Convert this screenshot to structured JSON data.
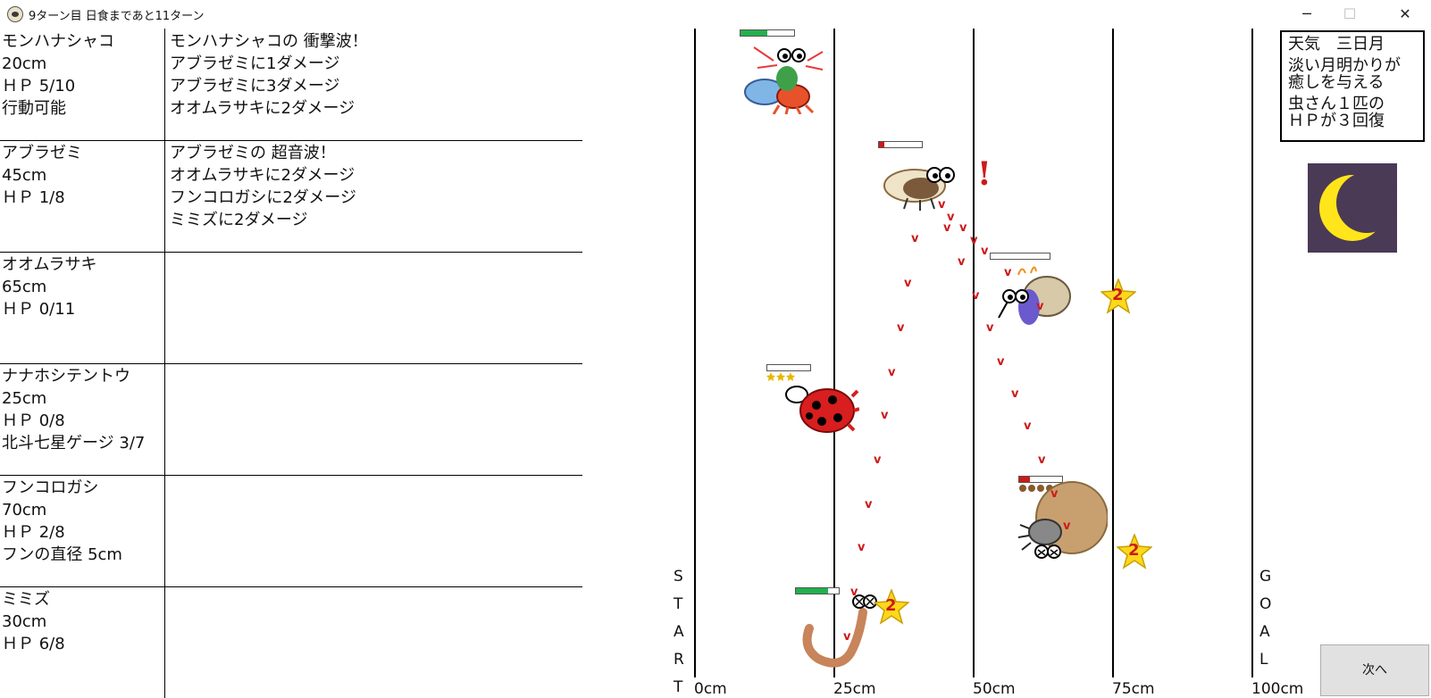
{
  "window": {
    "title": "9ターン目 日食まであと11ターン",
    "minimize": "─",
    "maximize": "☐",
    "close": "✕"
  },
  "creatures": [
    {
      "name": "モンハナシャコ",
      "dist": "20cm",
      "hp": "ＨＰ 5/10",
      "extra": "行動可能",
      "log": [
        "モンハナシャコの 衝撃波！",
        "アブラゼミに1ダメージ",
        "アブラゼミに3ダメージ",
        "オオムラサキに2ダメージ"
      ]
    },
    {
      "name": "アブラゼミ",
      "dist": "45cm",
      "hp": "ＨＰ 1/8",
      "extra": "",
      "log": [
        "アブラゼミの 超音波！",
        "オオムラサキに2ダメージ",
        "フンコロガシに2ダメージ",
        "ミミズに2ダメージ"
      ]
    },
    {
      "name": "オオムラサキ",
      "dist": "65cm",
      "hp": "ＨＰ 0/11",
      "extra": "",
      "log": []
    },
    {
      "name": "ナナホシテントウ",
      "dist": "25cm",
      "hp": "ＨＰ 0/8",
      "extra": "北斗七星ゲージ 3/7",
      "log": []
    },
    {
      "name": "フンコロガシ",
      "dist": "70cm",
      "hp": "ＨＰ 2/8",
      "extra": "フンの直径 5cm",
      "log": []
    },
    {
      "name": "ミミズ",
      "dist": "30cm",
      "hp": "ＨＰ 6/8",
      "extra": "",
      "log": []
    }
  ],
  "track": {
    "ticks": [
      "0cm",
      "25cm",
      "50cm",
      "75cm",
      "100cm"
    ],
    "start_letters": [
      "S",
      "T",
      "A",
      "R",
      "T"
    ],
    "goal_letters": [
      "G",
      "O",
      "A",
      "L"
    ]
  },
  "weather": {
    "line1": "天気　三日月",
    "line2": "淡い月明かりが",
    "line3": "癒しを与える",
    "line4": "虫さん１匹の",
    "line5": "ＨＰが３回復"
  },
  "markers": {
    "alert": "!",
    "attack": "v",
    "star_number": "2"
  },
  "hp_levels": [
    0.5,
    0.125,
    0.0,
    0.0,
    0.25,
    0.75
  ],
  "colors": {
    "hp_green": "#22b14c",
    "hp_red": "#cc1a1a",
    "moon_bg": "#4a3a55",
    "moon": "#ffe51a",
    "star": "#ffd81a",
    "button_bg": "#e1e1e1"
  },
  "next_button": "次へ"
}
